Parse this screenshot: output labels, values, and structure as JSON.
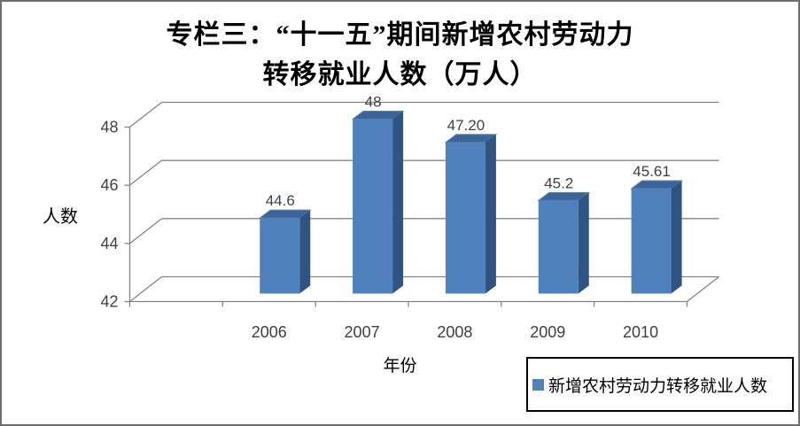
{
  "title": {
    "line1": "专栏三：“十一五”期间新增农村劳动力",
    "line2": "转移就业人数（万人）"
  },
  "chart_data": {
    "type": "bar",
    "style": "3d-column",
    "title": "专栏三：“十一五”期间新增农村劳动力转移就业人数（万人）",
    "categories": [
      "2006",
      "2007",
      "2008",
      "2009",
      "2010"
    ],
    "series": [
      {
        "name": "新增农村劳动力转移就业人数",
        "values": [
          44.6,
          48,
          47.2,
          45.2,
          45.61
        ]
      }
    ],
    "data_labels": [
      "44.6",
      "48",
      "47.20",
      "45.2",
      "45.61"
    ],
    "xlabel": "年份",
    "ylabel": "人数",
    "ylim": [
      42,
      48
    ],
    "yticks": [
      42,
      44,
      46,
      48
    ],
    "grid": true,
    "legend_position": "bottom-right",
    "colors": {
      "bar_front": "#4F81BD",
      "bar_top": "#3D6498",
      "bar_side": "#2F5482",
      "bar_edge": "#5c82b4",
      "grid": "#848484",
      "axis": "#848484",
      "tick_text": "#3f3f3f",
      "label_text": "#404040"
    }
  },
  "legend": {
    "marker_color": "#4F81BD"
  }
}
